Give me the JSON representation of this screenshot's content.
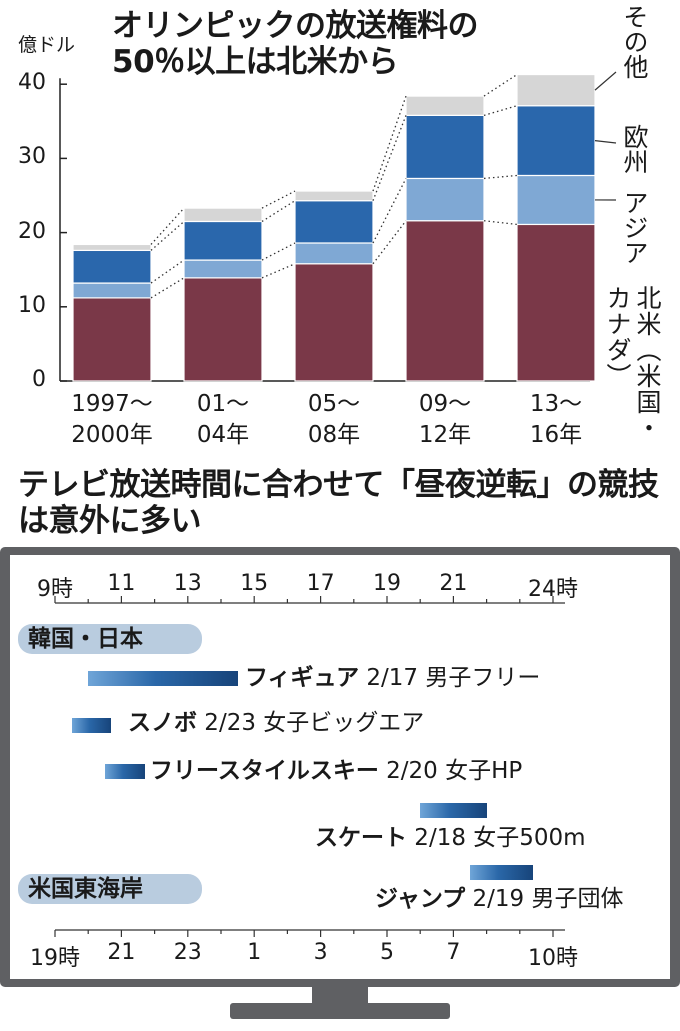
{
  "chart_data": [
    {
      "type": "bar",
      "stacked": true,
      "title": "オリンピックの放送権料の50％以上は北米から",
      "ylabel": "億ドル",
      "ylim": [
        0,
        40
      ],
      "yticks": [
        0,
        10,
        20,
        30,
        40
      ],
      "categories": [
        "1997〜2000年",
        "01〜04年",
        "05〜08年",
        "09〜12年",
        "13〜16年"
      ],
      "category_lines": [
        [
          "1997〜",
          "2000年"
        ],
        [
          "01〜",
          "04年"
        ],
        [
          "05〜",
          "08年"
        ],
        [
          "09〜",
          "12年"
        ],
        [
          "13〜",
          "16年"
        ]
      ],
      "series": [
        {
          "name": "北米（米国・カナダ）",
          "color": "#7a3848",
          "values": [
            11.2,
            13.9,
            15.8,
            21.6,
            21.1
          ]
        },
        {
          "name": "アジア",
          "color": "#7fa8d4",
          "values": [
            2.0,
            2.4,
            2.8,
            5.7,
            6.6
          ]
        },
        {
          "name": "欧州",
          "color": "#2a67ac",
          "values": [
            4.4,
            5.2,
            5.7,
            8.5,
            9.4
          ]
        },
        {
          "name": "その他",
          "color": "#d6d6d6",
          "values": [
            0.8,
            1.8,
            1.3,
            2.6,
            4.2
          ]
        }
      ]
    },
    {
      "type": "gantt",
      "title": "テレビ放送時間に合わせて「昼夜逆転」の競技は意外に多い",
      "axis_top": {
        "label": "韓国・日本",
        "ticks": [
          "9時",
          "11",
          "13",
          "15",
          "17",
          "19",
          "21",
          "24時"
        ]
      },
      "axis_bottom": {
        "label": "米国東海岸",
        "ticks": [
          "19時",
          "21",
          "23",
          "1",
          "3",
          "5",
          "7",
          "10時"
        ]
      },
      "events": [
        {
          "sport": "フィギュア",
          "detail": "2/17 男子フリー",
          "start": 10.0,
          "end": 14.5
        },
        {
          "sport": "スノボ",
          "detail": "2/23 女子ビッグエア",
          "start": 9.5,
          "end": 10.7
        },
        {
          "sport": "フリースタイルスキー",
          "detail": "2/20 女子HP",
          "start": 10.5,
          "end": 11.7
        },
        {
          "sport": "スケート",
          "detail": "2/18 女子500m",
          "start": 20.0,
          "end": 22.0
        },
        {
          "sport": "ジャンプ",
          "detail": "2/19 男子団体",
          "start": 21.5,
          "end": 23.4
        }
      ]
    }
  ],
  "legend_labels": {
    "other": "その他",
    "europe": "欧州",
    "asia": "アジア",
    "na_1": "北米（米国・",
    "na_2": "カナダ）"
  }
}
